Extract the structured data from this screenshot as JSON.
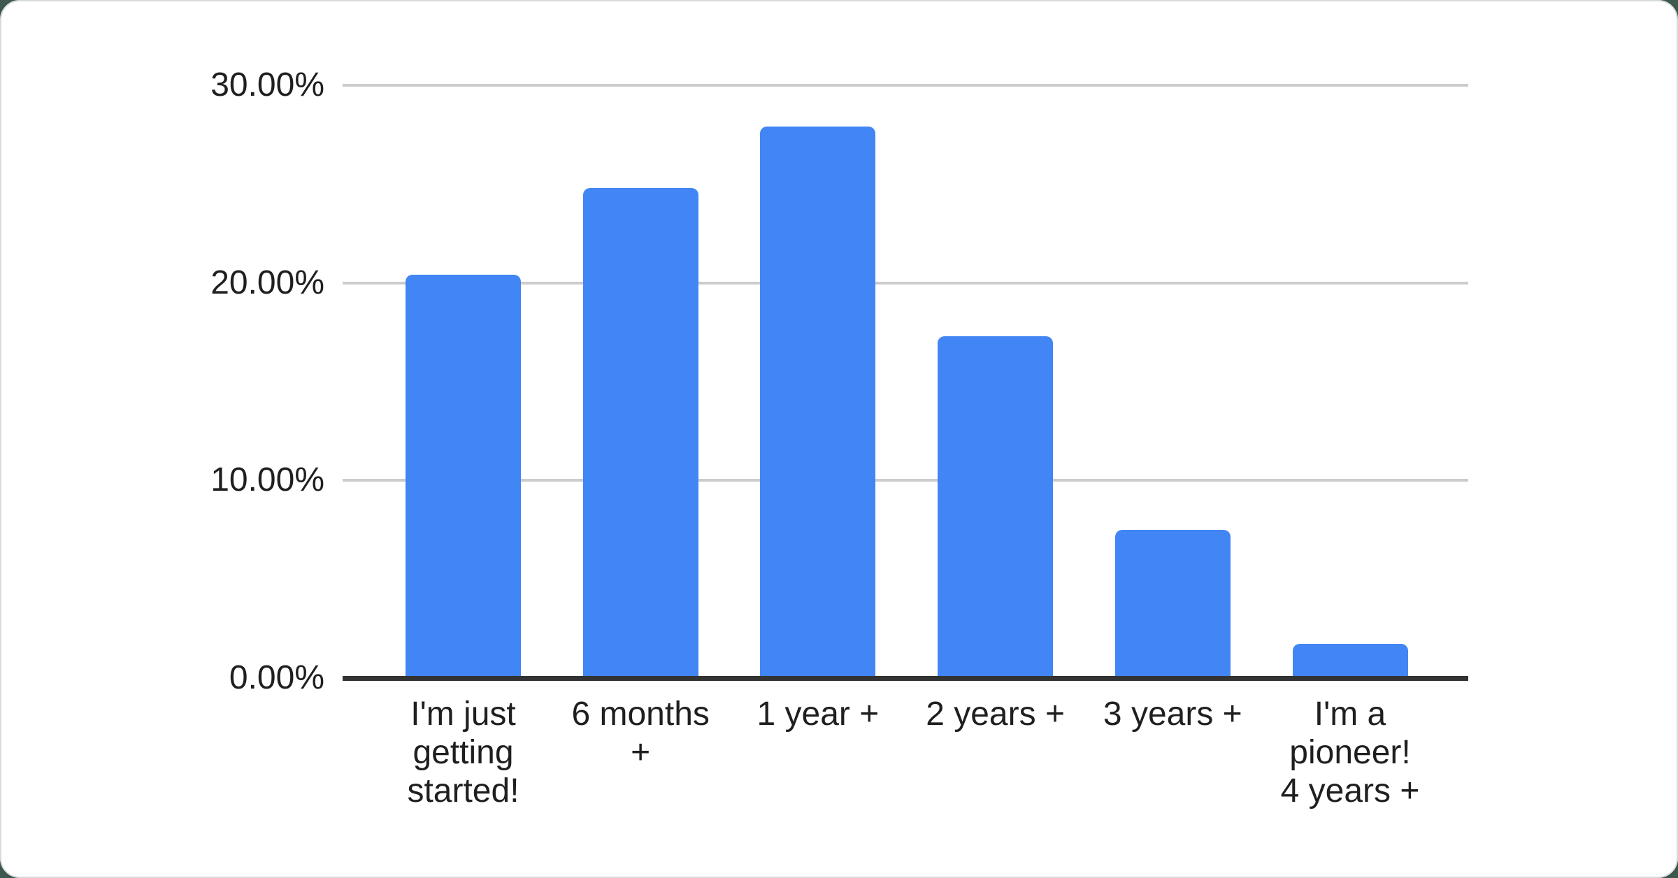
{
  "page": {
    "backdrop_color": "#3e594d",
    "card_color": "#ffffff",
    "card_border_color": "#d7dbde"
  },
  "chart_data": {
    "type": "bar",
    "title": "",
    "xlabel": "",
    "ylabel": "",
    "legend": "none",
    "grid": true,
    "categories": [
      "I'm just getting started!",
      "6 months +",
      "1 year +",
      "2 years +",
      "3 years +",
      "I'm a pioneer! 4 years +"
    ],
    "category_lines": [
      [
        "I'm just",
        "getting",
        "started!"
      ],
      [
        "6 months",
        "+"
      ],
      [
        "1 year +"
      ],
      [
        "2 years +"
      ],
      [
        "3 years +"
      ],
      [
        "I'm a",
        "pioneer!",
        "4 years +"
      ]
    ],
    "values": [
      20.4,
      24.8,
      27.9,
      17.3,
      7.5,
      1.75
    ],
    "value_unit": "%",
    "ylim": [
      0,
      30
    ],
    "yticks": [
      {
        "value": 0,
        "label": "0.00%"
      },
      {
        "value": 10,
        "label": "10.00%"
      },
      {
        "value": 20,
        "label": "20.00%"
      },
      {
        "value": 30,
        "label": "30.00%"
      }
    ],
    "colors": {
      "bar": "#4285f4",
      "gridline": "#cccccc",
      "axis": "#333333",
      "label": "#1f1f1f"
    }
  }
}
